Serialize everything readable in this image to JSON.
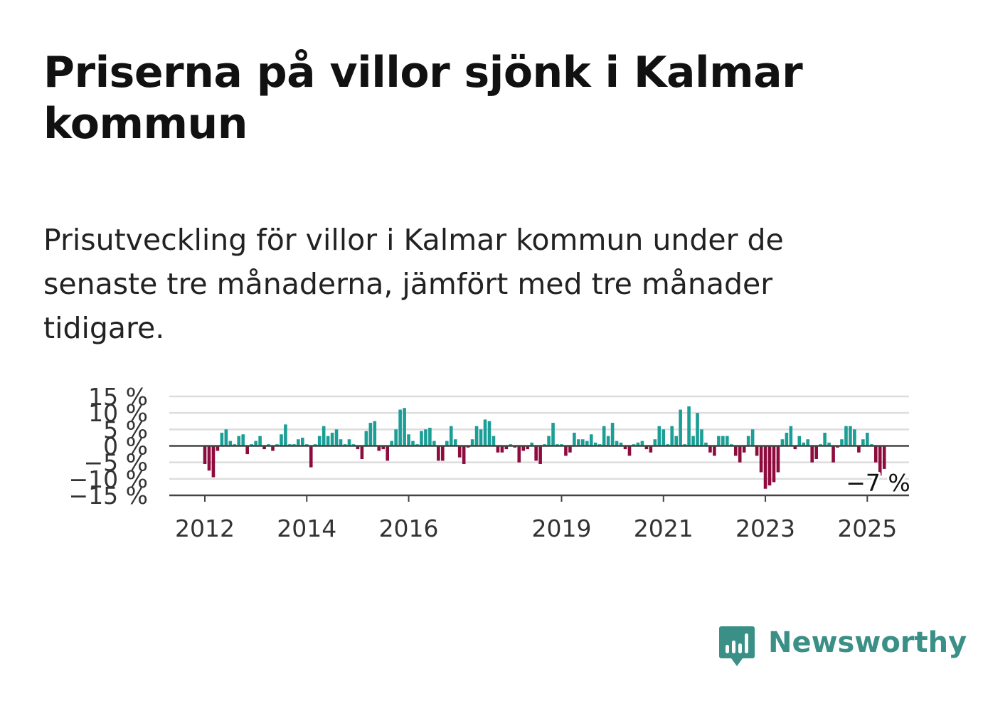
{
  "title": "Priserna på villor sjönk i Kalmar kommun",
  "subtitle": "Prisutveckling för villor i Kalmar kommun under de senaste tre månaderna, jämfört med tre månader tidigare.",
  "brand": {
    "name": "Newsworthy",
    "icon": "newsworthy-logo-icon",
    "color": "#3a8f86"
  },
  "colors": {
    "positive": "#1a9e96",
    "negative": "#8e0b3e",
    "grid": "#dddddd",
    "axis": "#444444",
    "zero": "#444444"
  },
  "chart_data": {
    "type": "bar",
    "title": "",
    "xlabel": "",
    "ylabel": "",
    "ylim": [
      -15,
      15
    ],
    "y_ticks": [
      15,
      10,
      5,
      0,
      -5,
      -10,
      -15
    ],
    "y_tick_labels": [
      "15 %",
      "10 %",
      "5 %",
      "0 %",
      "−5 %",
      "−10 %",
      "−15 %"
    ],
    "x_ticks": [
      {
        "label": "2012",
        "index": 0
      },
      {
        "label": "2014",
        "index": 24
      },
      {
        "label": "2016",
        "index": 48
      },
      {
        "label": "2019",
        "index": 84
      },
      {
        "label": "2021",
        "index": 108
      },
      {
        "label": "2023",
        "index": 132
      },
      {
        "label": "2025",
        "index": 156
      }
    ],
    "start": "2012-01",
    "frequency": "monthly",
    "grid": true,
    "annotation": {
      "text": "−7 %",
      "index": 157,
      "value": -7
    },
    "values": [
      -5.5,
      -7.5,
      -9.5,
      -1.5,
      4,
      5,
      1.5,
      0.5,
      3,
      3.5,
      -2.5,
      0.5,
      1.5,
      3,
      -1,
      0.5,
      -1.5,
      0.5,
      3.5,
      6.5,
      0.5,
      0.5,
      2,
      2.5,
      0.5,
      -6.5,
      0.5,
      3,
      6,
      3,
      4,
      5,
      2,
      0.5,
      2,
      0.5,
      -1,
      -4,
      4.5,
      7,
      7.5,
      -1.5,
      -1,
      -4.5,
      1.5,
      5,
      11,
      11.5,
      3.5,
      1.5,
      0.5,
      4.5,
      5,
      5.5,
      1.5,
      -4.5,
      -4.5,
      1.5,
      6,
      2,
      -3.5,
      -5.5,
      -0.5,
      2,
      6,
      5,
      8,
      7.5,
      3,
      -2,
      -2,
      -1,
      0.5,
      -0.5,
      -5,
      -1.5,
      -1,
      1,
      -4.5,
      -5.5,
      0.5,
      3,
      7,
      0.5,
      0.5,
      -3,
      -2,
      4,
      2,
      2,
      1.5,
      3.5,
      1,
      0.5,
      6,
      3,
      7,
      1.5,
      1,
      -1,
      -3,
      0.5,
      1,
      1.5,
      -1,
      -2,
      2,
      6,
      5,
      0.5,
      6,
      3,
      11,
      0.5,
      12,
      3,
      10,
      5,
      1,
      -2,
      -3,
      3,
      3,
      3,
      0.5,
      -3,
      -5,
      -2,
      3,
      5,
      -3,
      -8,
      -13,
      -12,
      -11,
      -8,
      2,
      4,
      6,
      -1,
      3,
      1,
      2,
      -5,
      -4,
      0.5,
      4,
      1,
      -5,
      -0.5,
      2,
      6,
      6,
      5,
      -2,
      2,
      4,
      0.5,
      -5,
      -9,
      -7
    ]
  }
}
